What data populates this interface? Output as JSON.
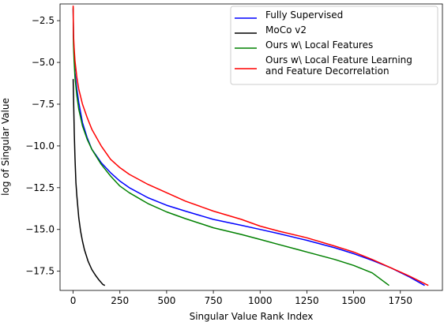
{
  "chart_data": {
    "type": "line",
    "title": "",
    "xlabel": "Singular Value Rank Index",
    "ylabel": "log of Singular Value",
    "xlim": [
      -70,
      1975
    ],
    "ylim": [
      -18.65,
      -1.5
    ],
    "xticks": [
      0,
      250,
      500,
      750,
      1000,
      1250,
      1500,
      1750
    ],
    "xtick_labels": [
      "0",
      "250",
      "500",
      "750",
      "1000",
      "1250",
      "1500",
      "1750"
    ],
    "yticks": [
      -2.5,
      -5.0,
      -7.5,
      -10.0,
      -12.5,
      -15.0,
      -17.5
    ],
    "ytick_labels": [
      "−2.5",
      "−5.0",
      "−7.5",
      "−10.0",
      "−12.5",
      "−15.0",
      "−17.5"
    ],
    "grid": false,
    "legend_position": "top-right",
    "series": [
      {
        "name": "Fully Supervised",
        "color": "#0000ff",
        "x": [
          0,
          2,
          5,
          10,
          20,
          30,
          50,
          75,
          100,
          150,
          200,
          250,
          300,
          400,
          500,
          600,
          750,
          900,
          1000,
          1100,
          1250,
          1400,
          1500,
          1600,
          1700,
          1800,
          1880
        ],
        "y": [
          -1.8,
          -3.5,
          -4.6,
          -5.6,
          -6.6,
          -7.4,
          -8.6,
          -9.5,
          -10.2,
          -11.0,
          -11.6,
          -12.1,
          -12.5,
          -13.1,
          -13.55,
          -13.9,
          -14.4,
          -14.75,
          -15.0,
          -15.25,
          -15.65,
          -16.1,
          -16.45,
          -16.85,
          -17.3,
          -17.85,
          -18.35
        ]
      },
      {
        "name": "MoCo v2",
        "color": "#000000",
        "x": [
          0,
          3,
          6,
          10,
          15,
          20,
          30,
          40,
          50,
          60,
          80,
          100,
          120,
          140,
          160,
          170
        ],
        "y": [
          -6.0,
          -7.6,
          -9.2,
          -10.7,
          -12.2,
          -13.0,
          -14.3,
          -15.1,
          -15.7,
          -16.2,
          -16.9,
          -17.4,
          -17.75,
          -18.05,
          -18.3,
          -18.35
        ]
      },
      {
        "name": "Ours w\\ Local Features",
        "color": "#008000",
        "x": [
          0,
          2,
          5,
          10,
          20,
          30,
          50,
          75,
          100,
          150,
          200,
          250,
          300,
          400,
          500,
          600,
          750,
          900,
          1000,
          1100,
          1250,
          1400,
          1500,
          1600,
          1690
        ],
        "y": [
          -1.7,
          -3.9,
          -4.9,
          -5.9,
          -7.0,
          -7.8,
          -8.8,
          -9.6,
          -10.2,
          -11.1,
          -11.8,
          -12.4,
          -12.8,
          -13.45,
          -13.95,
          -14.35,
          -14.9,
          -15.3,
          -15.6,
          -15.9,
          -16.35,
          -16.8,
          -17.15,
          -17.6,
          -18.35
        ]
      },
      {
        "name": "Ours w\\ Local Feature Learning\nand Feature Decorrelation",
        "color": "#ff0000",
        "x": [
          0,
          2,
          5,
          10,
          20,
          30,
          50,
          75,
          100,
          150,
          200,
          250,
          300,
          400,
          500,
          600,
          750,
          900,
          1000,
          1100,
          1250,
          1400,
          1500,
          1600,
          1700,
          1800,
          1900
        ],
        "y": [
          -1.6,
          -3.3,
          -4.1,
          -4.9,
          -5.9,
          -6.6,
          -7.5,
          -8.3,
          -9.0,
          -10.0,
          -10.8,
          -11.3,
          -11.7,
          -12.3,
          -12.8,
          -13.3,
          -13.9,
          -14.4,
          -14.8,
          -15.1,
          -15.5,
          -16.0,
          -16.35,
          -16.8,
          -17.3,
          -17.8,
          -18.35
        ]
      }
    ]
  }
}
